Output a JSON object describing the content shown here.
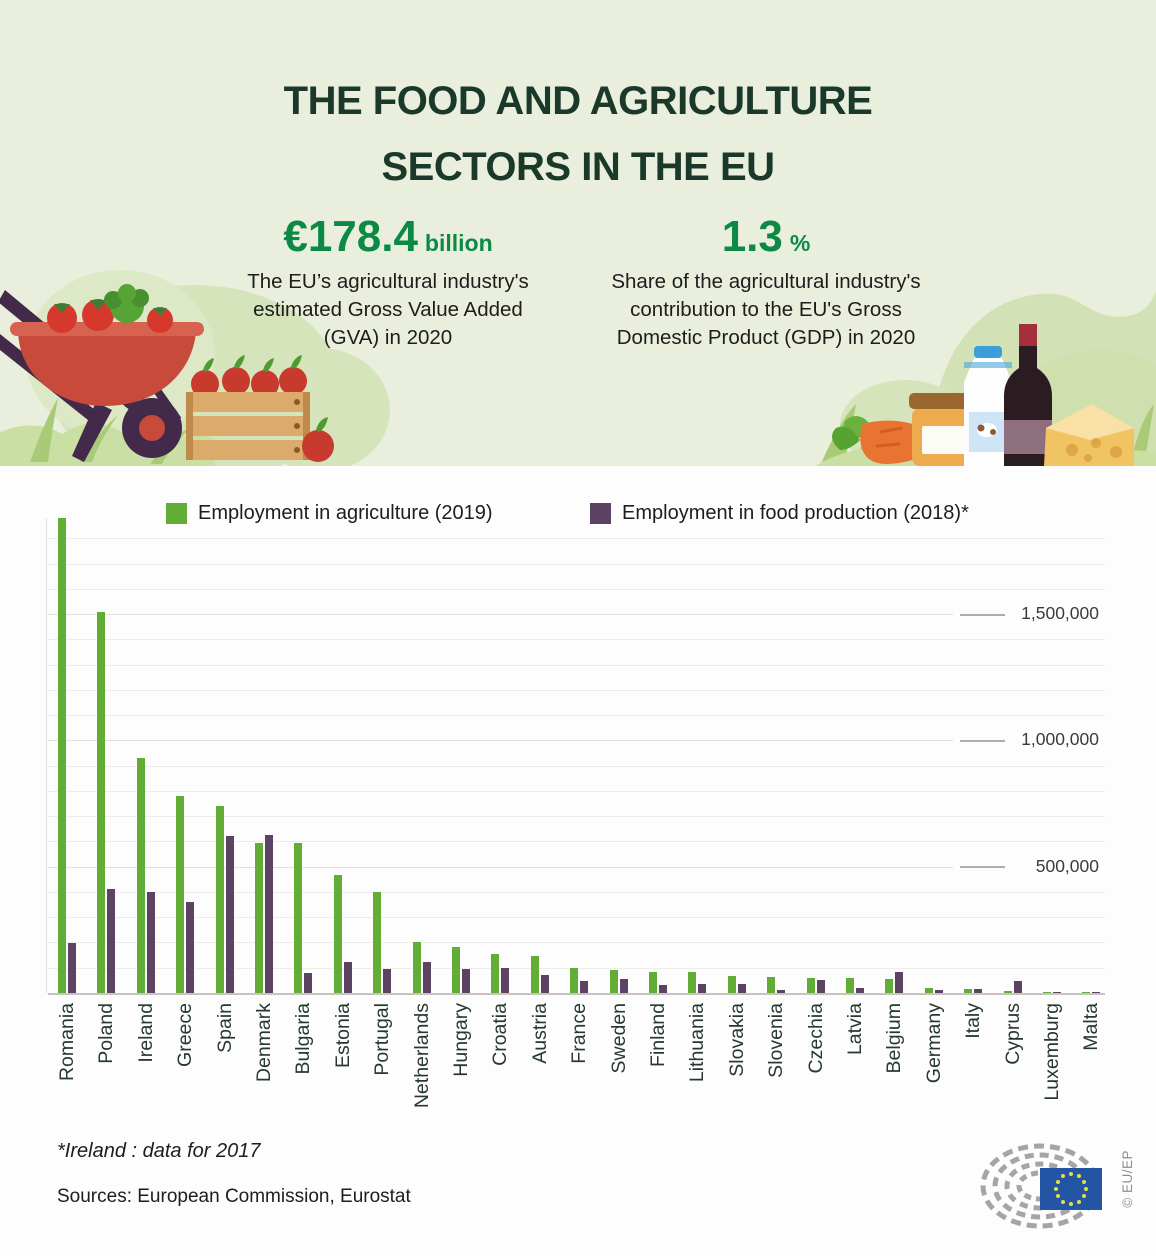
{
  "theme": {
    "header_background": "#e9efdc",
    "title_color": "#1a392b",
    "stat_green": "#0c8a45",
    "agriculture_green": "#61ad35",
    "food_purple": "#5d4363"
  },
  "header": {
    "title_line1": "THE FOOD AND AGRICULTURE",
    "title_line2": "SECTORS IN THE EU",
    "stat_left": {
      "value": "€178.4",
      "unit": "billion",
      "description": "The EU’s agricultural industry's\nestimated Gross Value Added\n(GVA) in 2020"
    },
    "stat_right": {
      "value": "1.3",
      "unit": "%",
      "description": "Share of the agricultural industry's\ncontribution to the EU's Gross\nDomestic Product (GDP) in 2020"
    }
  },
  "chart_data": {
    "type": "bar",
    "title": "",
    "legend_position": "top",
    "grid": true,
    "minor_grid_step": 100000,
    "ylim": [
      0,
      1900000
    ],
    "yticks": [
      {
        "value": 500000,
        "label": "500,000"
      },
      {
        "value": 1000000,
        "label": "1,000,000"
      },
      {
        "value": 1500000,
        "label": "1,500,000"
      }
    ],
    "categories": [
      "Romania",
      "Poland",
      "Ireland",
      "Greece",
      "Spain",
      "Denmark",
      "Bulgaria",
      "Estonia",
      "Portugal",
      "Netherlands",
      "Hungary",
      "Croatia",
      "Austria",
      "France",
      "Sweden",
      "Finland",
      "Lithuania",
      "Slovakia",
      "Slovenia",
      "Czechia",
      "Latvia",
      "Belgium",
      "Germany",
      "Italy",
      "Cyprus",
      "Luxemburg",
      "Malta"
    ],
    "series": [
      {
        "name": "Employment in agriculture (2019)",
        "color": "#61ad35",
        "values": [
          1880000,
          1510000,
          930000,
          780000,
          740000,
          595000,
          595000,
          467000,
          398000,
          200000,
          184000,
          155000,
          147000,
          97000,
          93000,
          84000,
          82000,
          68000,
          64000,
          61000,
          58000,
          54000,
          20000,
          14000,
          9000,
          4000,
          2000
        ]
      },
      {
        "name": "Employment in food production (2018)*",
        "color": "#5d4363",
        "values": [
          197000,
          410000,
          398000,
          362000,
          620000,
          624000,
          80000,
          122000,
          94000,
          124000,
          94000,
          98000,
          71000,
          47000,
          54000,
          33000,
          37000,
          37000,
          13000,
          50000,
          20000,
          84000,
          11000,
          14000,
          46000,
          3000,
          1500
        ]
      }
    ]
  },
  "footer": {
    "footnote": "*Ireland : data for 2017",
    "sources": "Sources: European Commission, Eurostat",
    "credit": "© EU/EP"
  }
}
